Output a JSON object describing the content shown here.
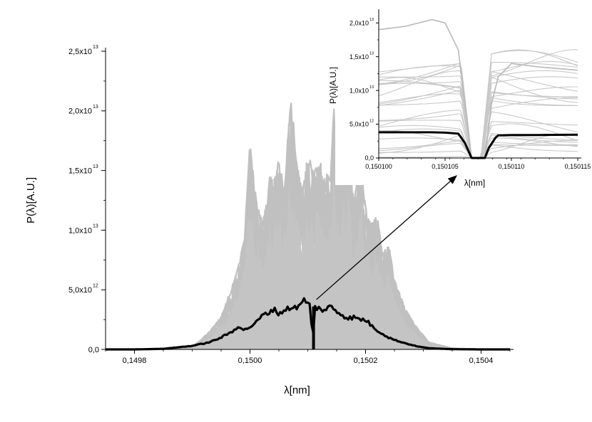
{
  "chart_data": [
    {
      "id": "main",
      "type": "line",
      "title": "",
      "xlabel": "λ[nm]",
      "ylabel": "P(λ)[A.U.]",
      "xlim": [
        0.14975,
        0.15045
      ],
      "ylim": [
        0,
        25000000000000.0
      ],
      "x_ticks": [
        {
          "value": 0.1498,
          "label": "0,1498"
        },
        {
          "value": 0.15,
          "label": "0,1500"
        },
        {
          "value": 0.1502,
          "label": "0,1502"
        },
        {
          "value": 0.1504,
          "label": "0,1504"
        }
      ],
      "y_ticks": [
        {
          "value": 0,
          "mant": "0,0",
          "exp": ""
        },
        {
          "value": 5000000000000.0,
          "mant": "5,0x10",
          "exp": "12"
        },
        {
          "value": 10000000000000.0,
          "mant": "1,0x10",
          "exp": "13"
        },
        {
          "value": 15000000000000.0,
          "mant": "1,5x10",
          "exp": "13"
        },
        {
          "value": 20000000000000.0,
          "mant": "2,0x10",
          "exp": "13"
        },
        {
          "value": 25000000000000.0,
          "mant": "2,5x10",
          "exp": "13"
        }
      ],
      "grid": false,
      "series": [
        {
          "role": "individual-shots",
          "color": "#c0c0c0",
          "envelope": {
            "x": [
              0.14975,
              0.1498,
              0.14985,
              0.1499,
              0.14993,
              0.14995,
              0.14997,
              0.14998,
              0.14999,
              0.15,
              0.15001,
              0.15002,
              0.15003,
              0.150035,
              0.15004,
              0.15005,
              0.15006,
              0.15007,
              0.15008,
              0.15009,
              0.1501,
              0.15011,
              0.15012,
              0.15013,
              0.15014,
              0.150145,
              0.15015,
              0.15016,
              0.15017,
              0.15018,
              0.15019,
              0.1502,
              0.15021,
              0.15022,
              0.15023,
              0.15024,
              0.15025,
              0.15027,
              0.15029,
              0.15031,
              0.15035,
              0.1504,
              0.15045
            ],
            "y": [
              0,
              0,
              20000000000.0,
              200000000000.0,
              1500000000000.0,
              2800000000000.0,
              5500000000000.0,
              7000000000000.0,
              9500000000000.0,
              17500000000000.0,
              13000000000000.0,
              11000000000000.0,
              12500000000000.0,
              15500000000000.0,
              14000000000000.0,
              16000000000000.0,
              13500000000000.0,
              22500000000000.0,
              16000000000000.0,
              13500000000000.0,
              16500000000000.0,
              15000000000000.0,
              16000000000000.0,
              14500000000000.0,
              15500000000000.0,
              20700000000000.0,
              16000000000000.0,
              17500000000000.0,
              18000000000000.0,
              12000000000000.0,
              17500000000000.0,
              12000000000000.0,
              10500000000000.0,
              11500000000000.0,
              8000000000000.0,
              9000000000000.0,
              6000000000000.0,
              3300000000000.0,
              1800000000000.0,
              600000000000.0,
              100000000000.0,
              10000000000.0,
              0
            ]
          }
        },
        {
          "role": "average",
          "color": "#000000",
          "x": [
            0.14975,
            0.1498,
            0.14985,
            0.1499,
            0.14993,
            0.14995,
            0.14997,
            0.14998,
            0.14999,
            0.15,
            0.15001,
            0.15002,
            0.15003,
            0.15004,
            0.15005,
            0.15006,
            0.15007,
            0.15008,
            0.150085,
            0.150095,
            0.1501,
            0.150105,
            0.150108,
            0.150112,
            0.15012,
            0.15013,
            0.15014,
            0.15015,
            0.15016,
            0.15017,
            0.15018,
            0.15019,
            0.1502,
            0.15021,
            0.15022,
            0.15023,
            0.15024,
            0.15025,
            0.15027,
            0.15029,
            0.15031,
            0.15035,
            0.1504,
            0.15045
          ],
          "y": [
            0,
            0,
            50000000000.0,
            300000000000.0,
            600000000000.0,
            1000000000000.0,
            1500000000000.0,
            2000000000000.0,
            1600000000000.0,
            1900000000000.0,
            2200000000000.0,
            2800000000000.0,
            3000000000000.0,
            3400000000000.0,
            3000000000000.0,
            3300000000000.0,
            3500000000000.0,
            3600000000000.0,
            3500000000000.0,
            4300000000000.0,
            3800000000000.0,
            3700000000000.0,
            0,
            3600000000000.0,
            3400000000000.0,
            3300000000000.0,
            3600000000000.0,
            3200000000000.0,
            2900000000000.0,
            2600000000000.0,
            2700000000000.0,
            2500000000000.0,
            2500000000000.0,
            2000000000000.0,
            1600000000000.0,
            1300000000000.0,
            1000000000000.0,
            800000000000.0,
            500000000000.0,
            250000000000.0,
            100000000000.0,
            20000000000.0,
            0,
            0
          ]
        }
      ],
      "annotation": "arrow from dip in average (x≈0.15011) to inset"
    },
    {
      "id": "inset",
      "type": "line",
      "title": "",
      "xlabel": "λ[nm]",
      "ylabel": "P(λ)[A.U.]",
      "xlim": [
        0.1501,
        0.150115
      ],
      "ylim": [
        0,
        21500000000000.0
      ],
      "x_ticks": [
        {
          "value": 0.1501,
          "label": "0,150100"
        },
        {
          "value": 0.150105,
          "label": "0,150105"
        },
        {
          "value": 0.15011,
          "label": "0,150110"
        },
        {
          "value": 0.150115,
          "label": "0,150115"
        }
      ],
      "y_ticks": [
        {
          "value": 0,
          "mant": "0,0",
          "exp": ""
        },
        {
          "value": 5000000000000.0,
          "mant": "5,0x10",
          "exp": "12"
        },
        {
          "value": 10000000000000.0,
          "mant": "1,0x10",
          "exp": "13"
        },
        {
          "value": 15000000000000.0,
          "mant": "1,5x10",
          "exp": "13"
        },
        {
          "value": 20000000000000.0,
          "mant": "2,0x10",
          "exp": "13"
        }
      ],
      "grid": false,
      "series": [
        {
          "role": "individual-shots",
          "color": "#c8c8c8",
          "x": [
            0.1501,
            0.150102,
            0.150104,
            0.150105,
            0.150106,
            0.1501065,
            0.150107,
            0.150108,
            0.1501085,
            0.150109,
            0.15011,
            0.150112,
            0.150115
          ],
          "y": [
            19000000000000.0,
            19500000000000.0,
            20500000000000.0,
            20000000000000.0,
            16000000000000.0,
            8000000000000.0,
            0,
            0,
            8000000000000.0,
            12000000000000.0,
            14000000000000.0,
            13500000000000.0,
            13000000000000.0
          ]
        },
        {
          "role": "average",
          "color": "#000000",
          "x": [
            0.1501,
            0.150102,
            0.150104,
            0.150105,
            0.150106,
            0.1501065,
            0.150107,
            0.150108,
            0.1501083,
            0.1501088,
            0.150109,
            0.15011,
            0.150112,
            0.150115
          ],
          "y": [
            3800000000000.0,
            3800000000000.0,
            3800000000000.0,
            3750000000000.0,
            3600000000000.0,
            2200000000000.0,
            0,
            0,
            1500000000000.0,
            3000000000000.0,
            3350000000000.0,
            3400000000000.0,
            3400000000000.0,
            3450000000000.0
          ]
        }
      ]
    }
  ]
}
